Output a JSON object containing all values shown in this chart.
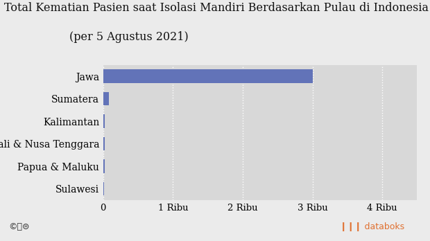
{
  "title_line1": "Total Kematian Pasien saat Isolasi Mandiri Berdasarkan Pulau di Indonesia",
  "title_line2": "(per 5 Agustus 2021)",
  "categories": [
    "Sulawesi",
    "Papua & Maluku",
    "Bali & Nusa Tenggara",
    "Kalimantan",
    "Sumatera",
    "Jawa"
  ],
  "values": [
    15,
    18,
    20,
    25,
    80,
    3000
  ],
  "bar_color": "#6273b8",
  "bg_color": "#ebebeb",
  "plot_bg_color": "#d8d8d8",
  "xlabel_ticks": [
    0,
    1000,
    2000,
    3000,
    4000
  ],
  "xlabel_labels": [
    "0",
    "1 Ribu",
    "2 Ribu",
    "3 Ribu",
    "4 Ribu"
  ],
  "xlim_max": 4500,
  "title_fontsize": 11.5,
  "label_fontsize": 10,
  "tick_fontsize": 9.5,
  "footer_left": "©Ⓐ⊜",
  "footer_right_icon": "❙❙❙",
  "footer_right_text": "databoks",
  "footer_icon_color": "#e07030",
  "footer_text_color": "#4ab0c0"
}
